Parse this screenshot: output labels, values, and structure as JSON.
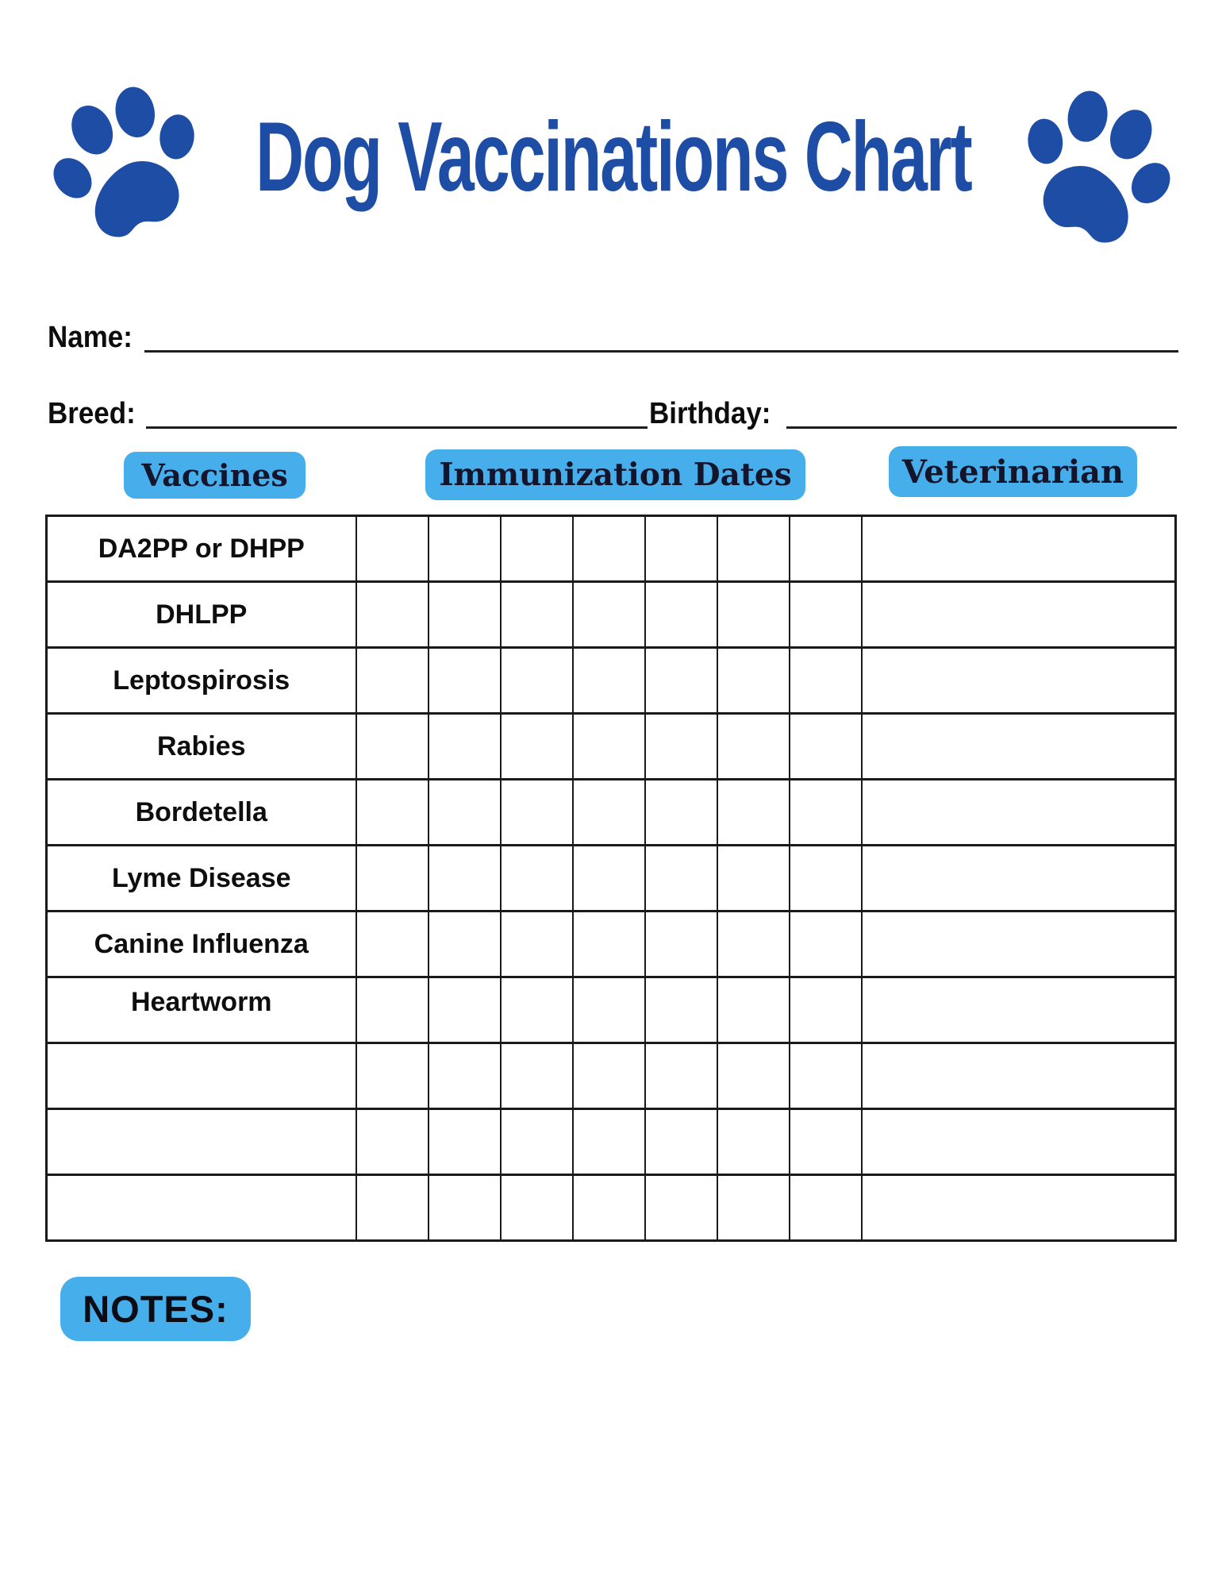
{
  "header": {
    "title": "Dog Vaccinations Chart",
    "left_icon": "paw-print-icon",
    "right_icon": "paw-print-icon"
  },
  "form": {
    "name_label": "Name:",
    "name_value": "",
    "breed_label": "Breed:",
    "breed_value": "",
    "birthday_label": "Birthday:",
    "birthday_value": ""
  },
  "section_headers": {
    "vaccines": "Vaccines",
    "immunization_dates": "Immunization Dates",
    "veterinarian": "Veterinarian"
  },
  "table": {
    "date_columns": 7,
    "rows": [
      "DA2PP or DHPP",
      "DHLPP",
      "Leptospirosis",
      "Rabies",
      "Bordetella",
      "Lyme Disease",
      "Canine Influenza",
      "Heartworm",
      "",
      "",
      ""
    ]
  },
  "notes": {
    "label": "NOTES:"
  },
  "colors": {
    "brand_blue": "#1e4da5",
    "badge_blue": "#47aeec",
    "badge_text": "#14142a",
    "line_color": "#1a1a1a",
    "text_color": "#111111"
  }
}
